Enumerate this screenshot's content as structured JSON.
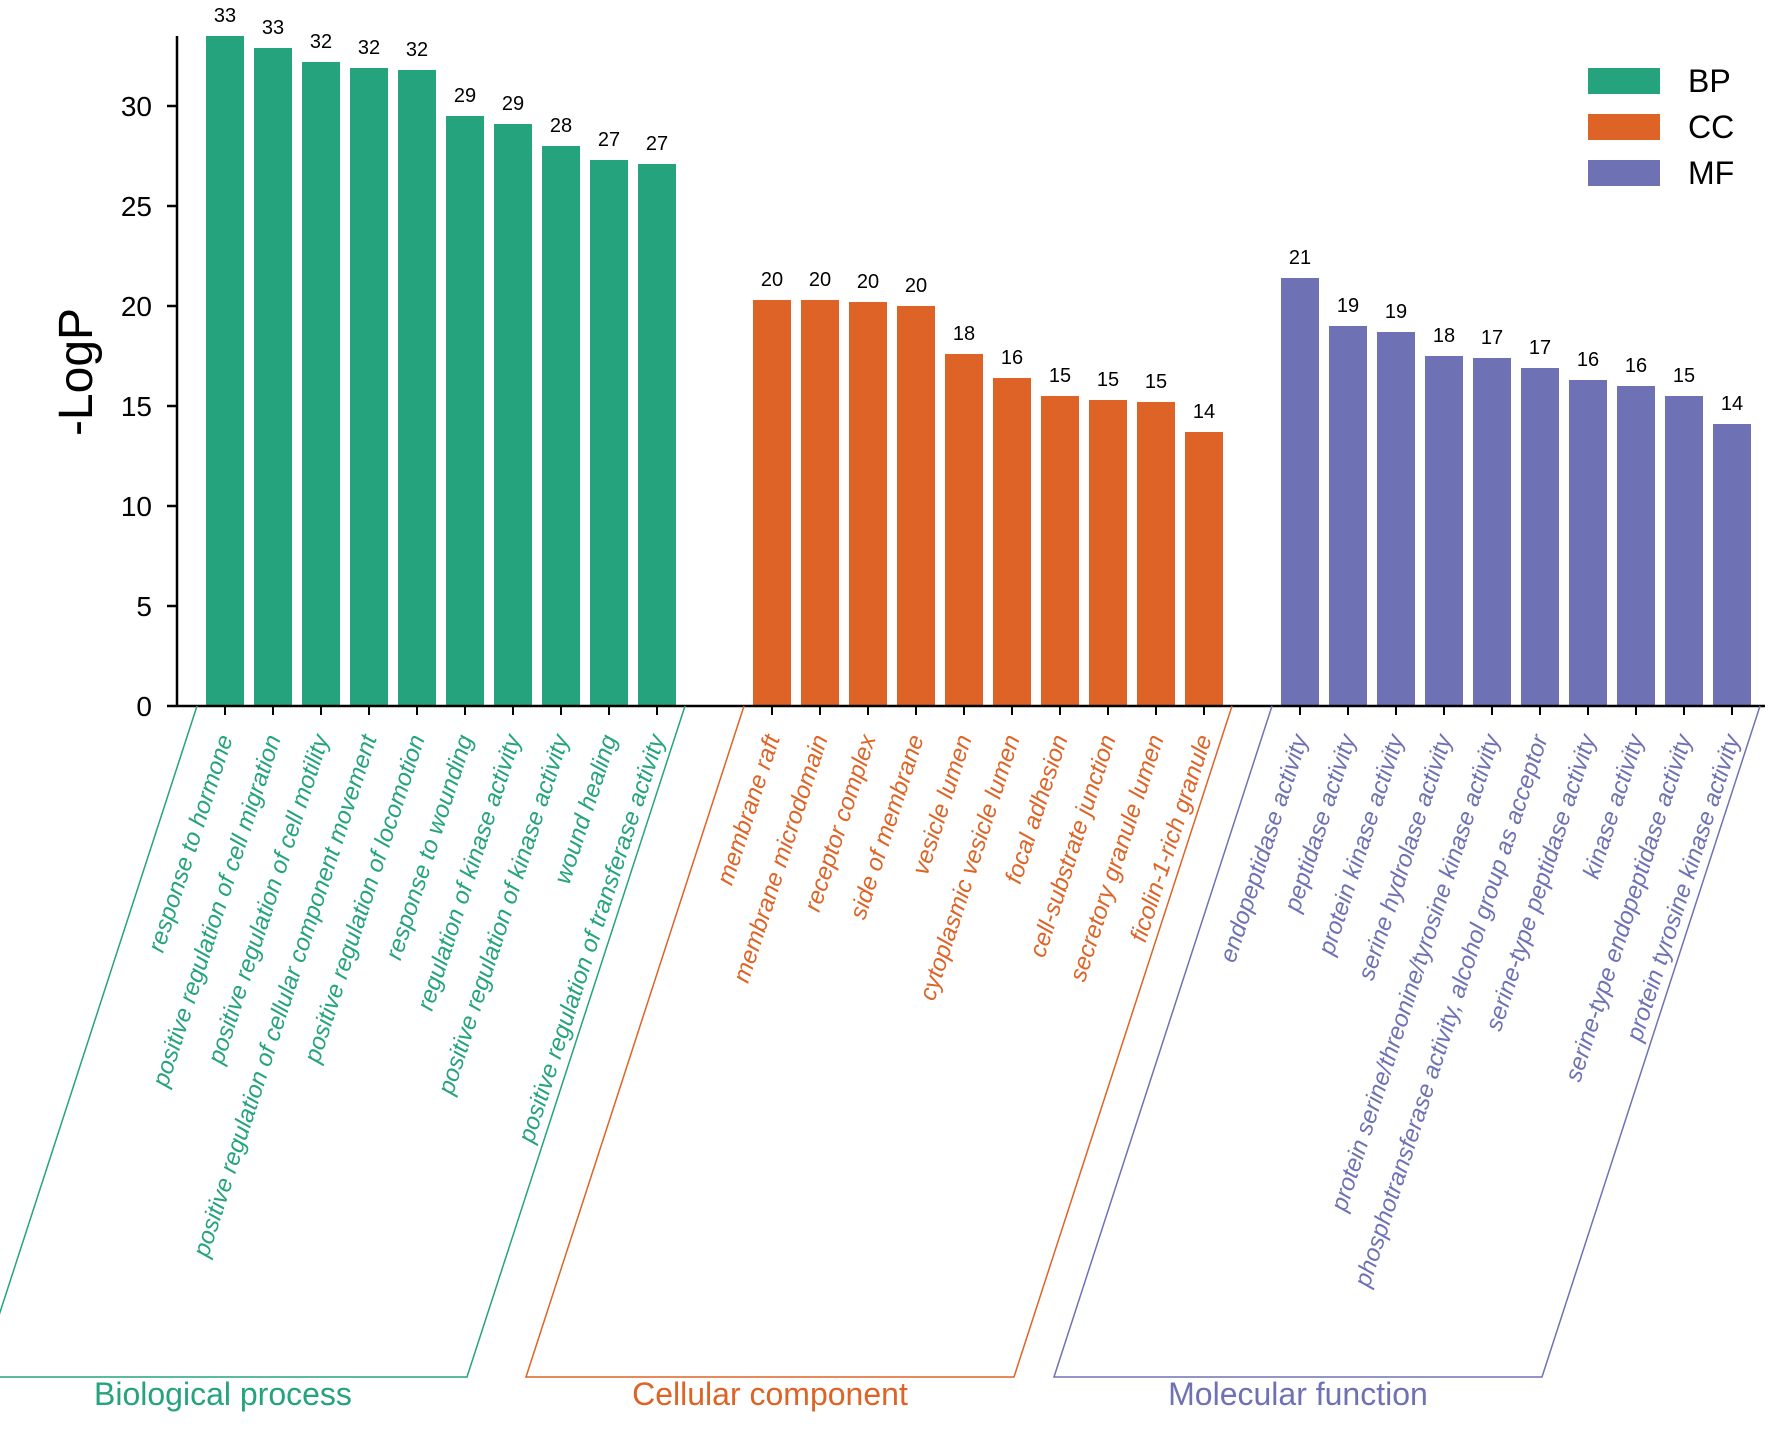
{
  "chart_data": {
    "type": "bar",
    "ylabel": "-LogP",
    "xlabel": "",
    "ylim": [
      0,
      34
    ],
    "yticks": [
      0,
      5,
      10,
      15,
      20,
      25,
      30
    ],
    "colors": {
      "BP": "#25a37c",
      "CC": "#dd6426",
      "MF": "#6e72b4"
    },
    "legend": [
      {
        "key": "BP",
        "label": "BP"
      },
      {
        "key": "CC",
        "label": "CC"
      },
      {
        "key": "MF",
        "label": "MF"
      }
    ],
    "groups": [
      {
        "key": "BP",
        "name": "Biological process",
        "categories": [
          "response to hormone",
          "positive regulation of cell migration",
          "positive regulation of cell motility",
          "positive regulation of cellular component movement",
          "positive regulation of locomotion",
          "response to wounding",
          "regulation of kinase activity",
          "positive regulation of kinase activity",
          "wound healing",
          "positive regulation of transferase activity"
        ],
        "values": [
          33.5,
          32.9,
          32.2,
          31.9,
          31.8,
          29.5,
          29.1,
          28.0,
          27.3,
          27.1
        ],
        "labels": [
          "33",
          "33",
          "32",
          "32",
          "32",
          "29",
          "29",
          "28",
          "27",
          "27"
        ]
      },
      {
        "key": "CC",
        "name": "Cellular component",
        "categories": [
          "membrane raft",
          "membrane microdomain",
          "receptor complex",
          "side of membrane",
          "vesicle lumen",
          "cytoplasmic vesicle lumen",
          "focal adhesion",
          "cell-substrate junction",
          "secretory granule lumen",
          "ficolin-1-rich granule"
        ],
        "values": [
          20.3,
          20.3,
          20.2,
          20.0,
          17.6,
          16.4,
          15.5,
          15.3,
          15.2,
          13.7
        ],
        "labels": [
          "20",
          "20",
          "20",
          "20",
          "18",
          "16",
          "15",
          "15",
          "15",
          "14"
        ]
      },
      {
        "key": "MF",
        "name": "Molecular function",
        "categories": [
          "endopeptidase activity",
          "peptidase activity",
          "protein kinase activity",
          "serine hydrolase activity",
          "protein serine/threonine/tyrosine kinase activity",
          "phosphotransferase activity, alcohol group as acceptor",
          "serine-type peptidase activity",
          "kinase activity",
          "serine-type endopeptidase activity",
          "protein tyrosine kinase activity"
        ],
        "values": [
          21.4,
          19.0,
          18.7,
          17.5,
          17.4,
          16.9,
          16.3,
          16.0,
          15.5,
          14.1
        ],
        "labels": [
          "21",
          "19",
          "19",
          "18",
          "17",
          "17",
          "16",
          "16",
          "15",
          "14"
        ]
      }
    ]
  }
}
